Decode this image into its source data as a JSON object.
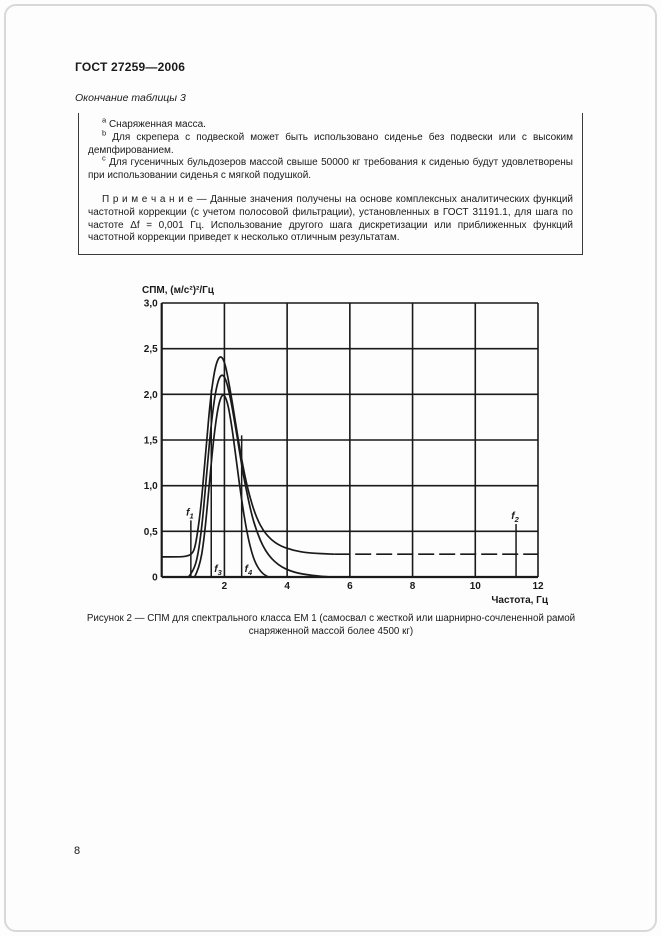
{
  "page": {
    "standard_code": "ГОСТ 27259—2006",
    "table_continuation": "Окончание таблицы 3",
    "page_number": "8"
  },
  "table_box": {
    "footnotes": [
      {
        "marker": "a",
        "text": "Снаряженная масса."
      },
      {
        "marker": "b",
        "text": "Для скрепера с подвеской может быть использовано сиденье без подвески или с высоким демпфированием."
      },
      {
        "marker": "c",
        "text": "Для гусеничных бульдозеров массой свыше 50000 кг требования к сиденью будут удовлетворены при использовании сиденья с мягкой подушкой."
      }
    ],
    "note": "П р и м е ч а н и е — Данные значения получены на основе комплексных аналитических функций частотной коррекции (с учетом полосовой фильтрации), установленных в ГОСТ 31191.1, для шага по частоте Δf = 0,001 Гц. Использование другого шага дискретизации или приближенных функций частотной коррекции приведет к несколько отличным результатам."
  },
  "figure": {
    "caption": "Рисунок 2 — СПМ для спектрального класса ЕМ 1 (самосвал с жесткой или шарнирно-сочлененной рамой снаряженной массой более 4500 кг)"
  },
  "chart_data": {
    "type": "line",
    "title": "",
    "ylabel": "СПМ, (м/с²)²/Гц",
    "xlabel": "Частота, Гц",
    "xlim": [
      0,
      12
    ],
    "ylim": [
      0,
      3
    ],
    "grid": true,
    "line_color": "#1a1a1a",
    "x_ticks": [
      {
        "v": 2,
        "label": "2"
      },
      {
        "v": 4,
        "label": "4"
      },
      {
        "v": 6,
        "label": "6"
      },
      {
        "v": 8,
        "label": "8"
      },
      {
        "v": 10,
        "label": "10"
      },
      {
        "v": 12,
        "label": "12"
      }
    ],
    "y_ticks": [
      {
        "v": 0,
        "label": "0"
      },
      {
        "v": 0.5,
        "label": "0,5"
      },
      {
        "v": 1,
        "label": "1,0"
      },
      {
        "v": 1.5,
        "label": "1,5"
      },
      {
        "v": 2,
        "label": "2,0"
      },
      {
        "v": 2.5,
        "label": "2,5"
      },
      {
        "v": 3,
        "label": "3,0"
      }
    ],
    "series": [
      {
        "name": "curve-wide-with-floor",
        "style": "solid",
        "points": [
          [
            0,
            0.22
          ],
          [
            0.5,
            0.22
          ],
          [
            0.8,
            0.225
          ],
          [
            1.0,
            0.26
          ],
          [
            1.1,
            0.38
          ],
          [
            1.25,
            0.75
          ],
          [
            1.4,
            1.35
          ],
          [
            1.55,
            1.95
          ],
          [
            1.7,
            2.3
          ],
          [
            1.85,
            2.43
          ],
          [
            2.0,
            2.37
          ],
          [
            2.15,
            2.12
          ],
          [
            2.35,
            1.7
          ],
          [
            2.55,
            1.28
          ],
          [
            2.75,
            0.95
          ],
          [
            3.0,
            0.66
          ],
          [
            3.3,
            0.47
          ],
          [
            3.7,
            0.35
          ],
          [
            4.2,
            0.29
          ],
          [
            4.7,
            0.262
          ],
          [
            5.5,
            0.25
          ]
        ]
      },
      {
        "name": "curve-wide-dashed-tail",
        "style": "dashed",
        "points": [
          [
            5.5,
            0.25
          ],
          [
            12,
            0.25
          ]
        ]
      },
      {
        "name": "curve-middle",
        "style": "solid",
        "points": [
          [
            0.85,
            0
          ],
          [
            1.0,
            0.06
          ],
          [
            1.15,
            0.22
          ],
          [
            1.3,
            0.6
          ],
          [
            1.45,
            1.2
          ],
          [
            1.6,
            1.75
          ],
          [
            1.75,
            2.1
          ],
          [
            1.9,
            2.23
          ],
          [
            2.05,
            2.17
          ],
          [
            2.2,
            1.95
          ],
          [
            2.4,
            1.55
          ],
          [
            2.6,
            1.12
          ],
          [
            2.8,
            0.78
          ],
          [
            3.0,
            0.52
          ],
          [
            3.3,
            0.28
          ],
          [
            3.7,
            0.13
          ],
          [
            4.2,
            0.05
          ],
          [
            4.8,
            0.015
          ],
          [
            5.4,
            0
          ]
        ]
      },
      {
        "name": "curve-narrow",
        "style": "solid",
        "points": [
          [
            1.05,
            0
          ],
          [
            1.2,
            0.1
          ],
          [
            1.35,
            0.4
          ],
          [
            1.5,
            0.95
          ],
          [
            1.65,
            1.5
          ],
          [
            1.8,
            1.88
          ],
          [
            1.95,
            2.02
          ],
          [
            2.1,
            1.92
          ],
          [
            2.25,
            1.62
          ],
          [
            2.4,
            1.22
          ],
          [
            2.55,
            0.84
          ],
          [
            2.7,
            0.52
          ],
          [
            2.85,
            0.29
          ],
          [
            3.0,
            0.14
          ],
          [
            3.2,
            0.04
          ],
          [
            3.4,
            0
          ]
        ]
      }
    ],
    "markers": [
      {
        "label": "f",
        "sub": "1",
        "x": 0.93,
        "y_top": 0.62,
        "label_pos": "top"
      },
      {
        "label": "f",
        "sub": "3",
        "x": 1.58,
        "y_top": 2.05,
        "label_pos": "bottom"
      },
      {
        "label": "f",
        "sub": "4",
        "x": 2.55,
        "y_top": 1.55,
        "label_pos": "bottom"
      },
      {
        "label": "f",
        "sub": "2",
        "x": 11.3,
        "y_top": 0.58,
        "label_pos": "top"
      }
    ]
  }
}
